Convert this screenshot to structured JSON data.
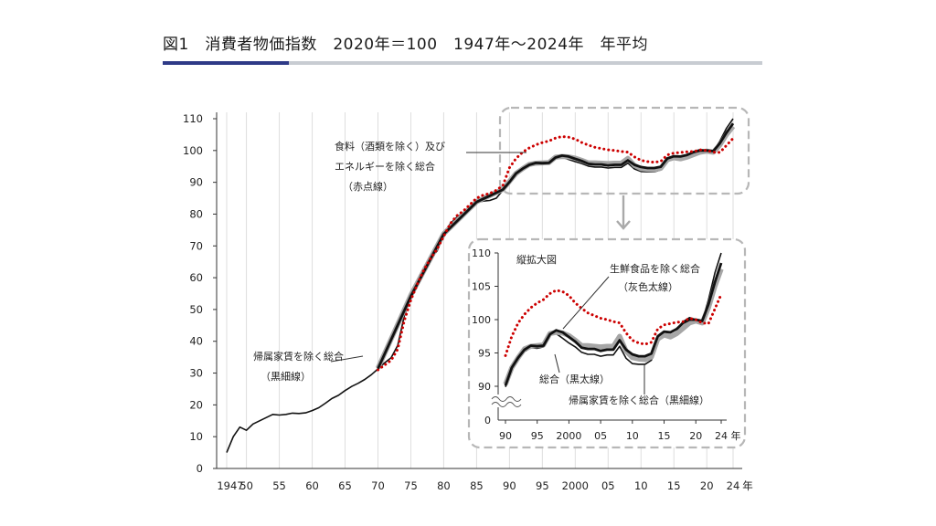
{
  "title": "図1　消費者物価指数　2020年＝100　1947年～2024年　年平均",
  "colors": {
    "accent_rule": "#2e3a87",
    "rule": "#c8ccd2",
    "core": "#111111",
    "excl_fresh": "#a6a6a6",
    "excl_rent": "#111111",
    "excl_food_energy": "#cc0000"
  },
  "chart_data": [
    {
      "type": "line",
      "main": true,
      "xlim": [
        1946,
        2025
      ],
      "ylim": [
        0,
        110
      ],
      "y_ticks": [
        0,
        10,
        20,
        30,
        40,
        50,
        60,
        70,
        80,
        90,
        100,
        110
      ],
      "x_ticks": [
        {
          "x": 1947,
          "label": "1947"
        },
        {
          "x": 1950,
          "label": "50"
        },
        {
          "x": 1955,
          "label": "55"
        },
        {
          "x": 1960,
          "label": "60"
        },
        {
          "x": 1965,
          "label": "65"
        },
        {
          "x": 1970,
          "label": "70"
        },
        {
          "x": 1975,
          "label": "75"
        },
        {
          "x": 1980,
          "label": "80"
        },
        {
          "x": 1985,
          "label": "85"
        },
        {
          "x": 1990,
          "label": "90"
        },
        {
          "x": 1995,
          "label": "95"
        },
        {
          "x": 2000,
          "label": "2000"
        },
        {
          "x": 2005,
          "label": "05"
        },
        {
          "x": 2010,
          "label": "10"
        },
        {
          "x": 2015,
          "label": "15"
        },
        {
          "x": 2020,
          "label": "20"
        },
        {
          "x": 2024,
          "label": "24"
        }
      ],
      "x_unit": "年",
      "grid_x": true,
      "series": [
        {
          "name": "帰属家賃を除く総合",
          "style": "black-thin",
          "points": [
            [
              1947,
              5
            ],
            [
              1948,
              10
            ],
            [
              1949,
              13
            ],
            [
              1950,
              12
            ],
            [
              1951,
              14
            ],
            [
              1952,
              15
            ],
            [
              1953,
              16
            ],
            [
              1954,
              17
            ],
            [
              1955,
              16.8
            ],
            [
              1956,
              17
            ],
            [
              1957,
              17.4
            ],
            [
              1958,
              17.3
            ],
            [
              1959,
              17.5
            ],
            [
              1960,
              18.2
            ],
            [
              1961,
              19.1
            ],
            [
              1962,
              20.5
            ],
            [
              1963,
              22
            ],
            [
              1964,
              23
            ],
            [
              1965,
              24.5
            ],
            [
              1966,
              25.8
            ],
            [
              1967,
              26.8
            ],
            [
              1968,
              28
            ],
            [
              1969,
              29.5
            ],
            [
              1970,
              31.3
            ],
            [
              1971,
              33.2
            ],
            [
              1972,
              34.8
            ],
            [
              1973,
              38.7
            ],
            [
              1974,
              48
            ],
            [
              1975,
              54
            ],
            [
              1976,
              59
            ],
            [
              1977,
              63
            ],
            [
              1978,
              66
            ],
            [
              1979,
              68.4
            ],
            [
              1980,
              73.5
            ],
            [
              1981,
              77
            ],
            [
              1982,
              79
            ],
            [
              1983,
              80.5
            ],
            [
              1984,
              82
            ],
            [
              1985,
              83.6
            ],
            [
              1986,
              84.1
            ],
            [
              1987,
              84.3
            ],
            [
              1988,
              85
            ],
            [
              1989,
              87.5
            ],
            [
              1990,
              89.9
            ],
            [
              1991,
              92.6
            ],
            [
              1992,
              94
            ],
            [
              1993,
              95.2
            ],
            [
              1994,
              95.8
            ],
            [
              1995,
              95.7
            ],
            [
              1996,
              95.9
            ],
            [
              1997,
              97.7
            ],
            [
              1998,
              97.9
            ],
            [
              1999,
              97.2
            ],
            [
              2000,
              96.5
            ],
            [
              2001,
              95.9
            ],
            [
              2002,
              95.1
            ],
            [
              2003,
              94.8
            ],
            [
              2004,
              94.8
            ],
            [
              2005,
              94.5
            ],
            [
              2006,
              94.7
            ],
            [
              2007,
              94.7
            ],
            [
              2008,
              96
            ],
            [
              2009,
              94.2
            ],
            [
              2010,
              93.4
            ],
            [
              2011,
              93.3
            ],
            [
              2012,
              93.3
            ],
            [
              2013,
              93.9
            ],
            [
              2014,
              97.1
            ],
            [
              2015,
              98.1
            ],
            [
              2016,
              98
            ],
            [
              2017,
              98.6
            ],
            [
              2018,
              99.7
            ],
            [
              2019,
              100.3
            ],
            [
              2020,
              100
            ],
            [
              2021,
              99.7
            ],
            [
              2022,
              103
            ],
            [
              2023,
              107
            ],
            [
              2024,
              110
            ]
          ]
        },
        {
          "name": "生鮮食品を除く総合",
          "style": "gray-thick",
          "points": [
            [
              1970,
              31.5
            ],
            [
              1975,
              54.5
            ],
            [
              1980,
              73.8
            ],
            [
              1985,
              83.9
            ],
            [
              1989,
              87.8
            ],
            [
              1990,
              90.3
            ],
            [
              1991,
              92.8
            ],
            [
              1992,
              94.3
            ],
            [
              1993,
              95.6
            ],
            [
              1994,
              96
            ],
            [
              1995,
              96.1
            ],
            [
              1996,
              96.2
            ],
            [
              1997,
              97.9
            ],
            [
              1998,
              98.1
            ],
            [
              1999,
              98
            ],
            [
              2000,
              97.6
            ],
            [
              2001,
              96.9
            ],
            [
              2002,
              96.1
            ],
            [
              2003,
              96.1
            ],
            [
              2004,
              96
            ],
            [
              2005,
              95.9
            ],
            [
              2006,
              96
            ],
            [
              2007,
              96
            ],
            [
              2008,
              97.5
            ],
            [
              2009,
              95.3
            ],
            [
              2010,
              94.3
            ],
            [
              2011,
              94.1
            ],
            [
              2012,
              94
            ],
            [
              2013,
              94.4
            ],
            [
              2014,
              97.1
            ],
            [
              2015,
              97.7
            ],
            [
              2016,
              97.4
            ],
            [
              2017,
              97.9
            ],
            [
              2018,
              98.7
            ],
            [
              2019,
              99.5
            ],
            [
              2020,
              99.8
            ],
            [
              2021,
              99.5
            ],
            [
              2022,
              101.8
            ],
            [
              2023,
              105
            ],
            [
              2024,
              107.6
            ]
          ]
        },
        {
          "name": "総合",
          "style": "black-thick",
          "points": [
            [
              1970,
              31.4
            ],
            [
              1975,
              54.2
            ],
            [
              1980,
              73.7
            ],
            [
              1985,
              83.8
            ],
            [
              1989,
              87.7
            ],
            [
              1990,
              90.1
            ],
            [
              1991,
              92.8
            ],
            [
              1992,
              94.3
            ],
            [
              1993,
              95.5
            ],
            [
              1994,
              96.1
            ],
            [
              1995,
              96
            ],
            [
              1996,
              96.1
            ],
            [
              1997,
              97.8
            ],
            [
              1998,
              98.4
            ],
            [
              1999,
              98.1
            ],
            [
              2000,
              97.4
            ],
            [
              2001,
              96.7
            ],
            [
              2002,
              95.8
            ],
            [
              2003,
              95.6
            ],
            [
              2004,
              95.6
            ],
            [
              2005,
              95.3
            ],
            [
              2006,
              95.5
            ],
            [
              2007,
              95.5
            ],
            [
              2008,
              96.9
            ],
            [
              2009,
              95.5
            ],
            [
              2010,
              94.8
            ],
            [
              2011,
              94.5
            ],
            [
              2012,
              94.5
            ],
            [
              2013,
              94.9
            ],
            [
              2014,
              97.5
            ],
            [
              2015,
              98.2
            ],
            [
              2016,
              98.1
            ],
            [
              2017,
              98.6
            ],
            [
              2018,
              99.5
            ],
            [
              2019,
              100
            ],
            [
              2020,
              100
            ],
            [
              2021,
              99.8
            ],
            [
              2022,
              102.3
            ],
            [
              2023,
              105.6
            ],
            [
              2024,
              108.5
            ]
          ]
        },
        {
          "name": "食料（酒類を除く）及びエネルギーを除く総合",
          "style": "red-dotted",
          "points": [
            [
              1970,
              31
            ],
            [
              1972,
              34
            ],
            [
              1973,
              37.5
            ],
            [
              1974,
              46.5
            ],
            [
              1975,
              53
            ],
            [
              1976,
              58
            ],
            [
              1977,
              62.5
            ],
            [
              1978,
              66
            ],
            [
              1979,
              69
            ],
            [
              1980,
              73
            ],
            [
              1981,
              77
            ],
            [
              1982,
              79.5
            ],
            [
              1983,
              81
            ],
            [
              1984,
              83
            ],
            [
              1985,
              85
            ],
            [
              1986,
              86
            ],
            [
              1987,
              86.5
            ],
            [
              1988,
              87.5
            ],
            [
              1989,
              89
            ],
            [
              1990,
              94.6
            ],
            [
              1991,
              97.5
            ],
            [
              1992,
              99.5
            ],
            [
              1993,
              100.8
            ],
            [
              1994,
              101.8
            ],
            [
              1995,
              102.5
            ],
            [
              1996,
              103
            ],
            [
              1997,
              103.9
            ],
            [
              1998,
              104.4
            ],
            [
              1999,
              104.2
            ],
            [
              2000,
              103.6
            ],
            [
              2001,
              102.5
            ],
            [
              2002,
              101.7
            ],
            [
              2003,
              101
            ],
            [
              2004,
              100.6
            ],
            [
              2005,
              100.2
            ],
            [
              2006,
              100
            ],
            [
              2007,
              99.7
            ],
            [
              2008,
              99.5
            ],
            [
              2009,
              98
            ],
            [
              2010,
              96.9
            ],
            [
              2011,
              96.5
            ],
            [
              2012,
              96.3
            ],
            [
              2013,
              96.6
            ],
            [
              2014,
              98.6
            ],
            [
              2015,
              99.2
            ],
            [
              2016,
              99.4
            ],
            [
              2017,
              99.6
            ],
            [
              2018,
              99.7
            ],
            [
              2019,
              100.2
            ],
            [
              2020,
              100
            ],
            [
              2021,
              99.5
            ],
            [
              2022,
              99.4
            ],
            [
              2023,
              101.6
            ],
            [
              2024,
              103.8
            ]
          ]
        }
      ],
      "annotations": [
        {
          "text_lines": [
            "食料（酒類を除く）及び",
            "エネルギーを除く総合",
            "（赤点線）"
          ],
          "series": "red-dotted"
        },
        {
          "text_lines": [
            "帰属家賃を除く総合",
            "（黒細線）"
          ],
          "series": "black-thin"
        }
      ]
    },
    {
      "type": "line",
      "main": false,
      "title": "縦拡大図",
      "xlim": [
        1990,
        2024.5
      ],
      "ylim": [
        88,
        110
      ],
      "y_ticks": [
        90,
        95,
        100,
        105,
        110
      ],
      "y_zero_label": "0",
      "x_ticks": [
        {
          "x": 1990,
          "label": "90"
        },
        {
          "x": 1995,
          "label": "95"
        },
        {
          "x": 2000,
          "label": "2000"
        },
        {
          "x": 2005,
          "label": "05"
        },
        {
          "x": 2010,
          "label": "10"
        },
        {
          "x": 2015,
          "label": "15"
        },
        {
          "x": 2020,
          "label": "20"
        },
        {
          "x": 2024,
          "label": "24"
        }
      ],
      "x_unit": "年",
      "annotations": [
        {
          "text_lines": [
            "生鮮食品を除く総合",
            "（灰色太線）"
          ],
          "series": "gray-thick"
        },
        {
          "text_lines": [
            "総合（黒太線）"
          ],
          "series": "black-thick"
        },
        {
          "text_lines": [
            "帰属家賃を除く総合（黒細線）"
          ],
          "series": "black-thin"
        }
      ]
    }
  ]
}
